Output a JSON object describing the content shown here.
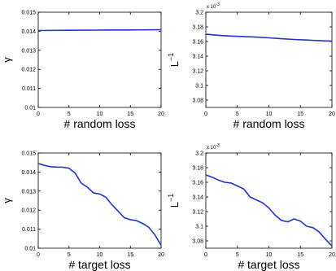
{
  "chart_data": [
    {
      "type": "line",
      "xlabel": "# random loss",
      "ylabel": "γ",
      "xlim": [
        0,
        20
      ],
      "ylim": [
        0.01,
        0.015
      ],
      "xticks": [
        0,
        5,
        10,
        15,
        20
      ],
      "xtick_labels": [
        "0",
        "5",
        "10",
        "15",
        "20"
      ],
      "yticks": [
        0.01,
        0.011,
        0.012,
        0.013,
        0.014,
        0.015
      ],
      "ytick_labels": [
        "0.01",
        "0.011",
        "0.012",
        "0.013",
        "0.014",
        "0.015"
      ],
      "exponent_label": "",
      "grid": false,
      "series": [
        {
          "color": "#2233cc",
          "x": [
            0,
            5,
            10,
            15,
            20
          ],
          "y": [
            0.01404,
            0.01405,
            0.01406,
            0.01407,
            0.01408
          ]
        }
      ]
    },
    {
      "type": "line",
      "xlabel": "# random loss",
      "ylabel": "L",
      "ylabel_superscript": "−1",
      "xlim": [
        0,
        20
      ],
      "ylim": [
        3.07,
        3.2
      ],
      "xticks": [
        0,
        5,
        10,
        15,
        20
      ],
      "xtick_labels": [
        "0",
        "5",
        "10",
        "15",
        "20"
      ],
      "yticks": [
        3.08,
        3.1,
        3.12,
        3.14,
        3.16,
        3.18,
        3.2
      ],
      "ytick_labels": [
        "3.08",
        "3.1",
        "3.12",
        "3.14",
        "3.16",
        "3.18",
        "3.2"
      ],
      "exponent_label": "x 10",
      "exponent_power": "-3",
      "grid": false,
      "series": [
        {
          "color": "#2233cc",
          "x": [
            0,
            2,
            4,
            6,
            8,
            10,
            12,
            14,
            16,
            18,
            20
          ],
          "y": [
            3.17,
            3.1685,
            3.1675,
            3.1668,
            3.166,
            3.165,
            3.1638,
            3.1628,
            3.162,
            3.1612,
            3.1605
          ]
        }
      ]
    },
    {
      "type": "line",
      "xlabel": "# target loss",
      "ylabel": "γ",
      "xlim": [
        0,
        20
      ],
      "ylim": [
        0.01,
        0.015
      ],
      "xticks": [
        0,
        5,
        10,
        15,
        20
      ],
      "xtick_labels": [
        "0",
        "5",
        "10",
        "15",
        "20"
      ],
      "yticks": [
        0.01,
        0.011,
        0.012,
        0.013,
        0.014,
        0.015
      ],
      "ytick_labels": [
        "0.01",
        "0.011",
        "0.012",
        "0.013",
        "0.014",
        "0.015"
      ],
      "exponent_label": "",
      "grid": false,
      "series": [
        {
          "color": "#2233cc",
          "x": [
            0,
            1,
            2,
            3,
            4,
            5,
            6,
            7,
            8,
            9,
            10,
            11,
            12,
            13,
            14,
            15,
            16,
            17,
            18,
            19,
            20
          ],
          "y": [
            0.01445,
            0.01435,
            0.01428,
            0.01426,
            0.01425,
            0.0142,
            0.01395,
            0.01342,
            0.0132,
            0.0129,
            0.01285,
            0.01268,
            0.01228,
            0.01195,
            0.0116,
            0.0115,
            0.01145,
            0.0113,
            0.0111,
            0.0107,
            0.01015
          ]
        }
      ]
    },
    {
      "type": "line",
      "xlabel": "# target loss",
      "ylabel": "L",
      "ylabel_superscript": "−1",
      "xlim": [
        0,
        20
      ],
      "ylim": [
        3.07,
        3.2
      ],
      "xticks": [
        0,
        5,
        10,
        15,
        20
      ],
      "xtick_labels": [
        "0",
        "5",
        "10",
        "15",
        "20"
      ],
      "yticks": [
        3.08,
        3.1,
        3.12,
        3.14,
        3.16,
        3.18,
        3.2
      ],
      "ytick_labels": [
        "3.08",
        "3.1",
        "3.12",
        "3.14",
        "3.16",
        "3.18",
        "3.2"
      ],
      "exponent_label": "x 10",
      "exponent_power": "-3",
      "grid": false,
      "series": [
        {
          "color": "#2233cc",
          "x": [
            0,
            1,
            2,
            3,
            4,
            5,
            6,
            7,
            8,
            9,
            10,
            11,
            12,
            13,
            14,
            15,
            16,
            17,
            18,
            19,
            20
          ],
          "y": [
            3.17,
            3.167,
            3.163,
            3.16,
            3.159,
            3.155,
            3.151,
            3.14,
            3.136,
            3.132,
            3.125,
            3.115,
            3.108,
            3.106,
            3.11,
            3.107,
            3.1,
            3.098,
            3.092,
            3.082,
            3.073
          ]
        }
      ]
    }
  ]
}
